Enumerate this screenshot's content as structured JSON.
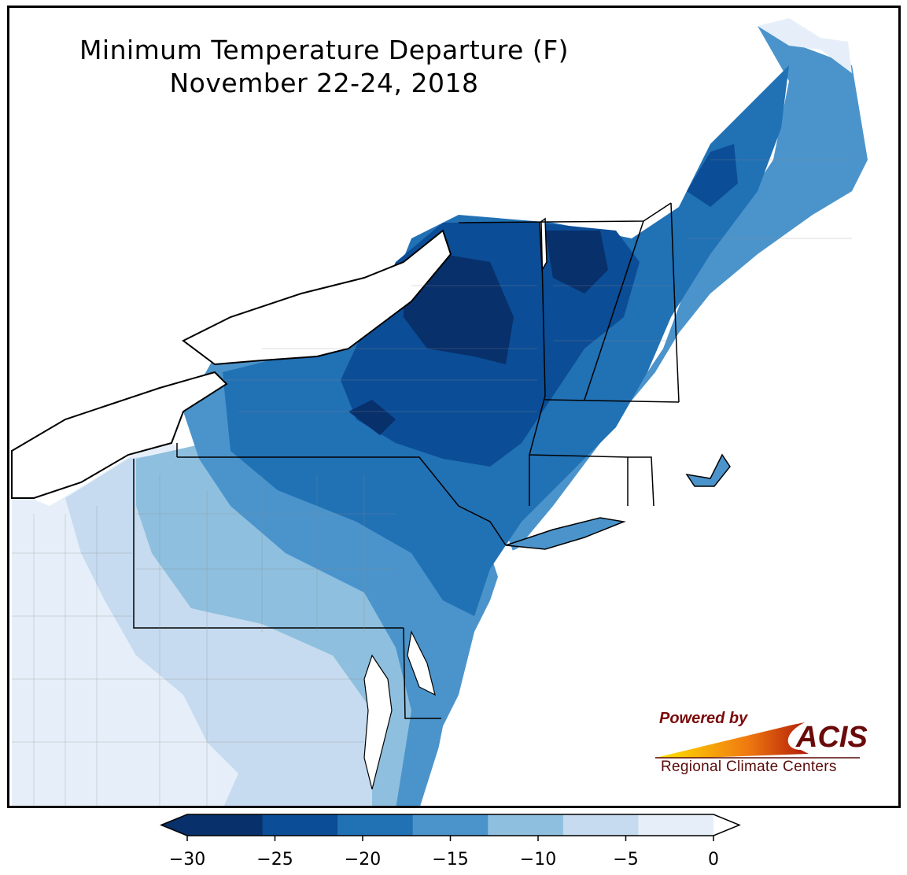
{
  "map": {
    "title_line1": "Minimum Temperature Departure (F)",
    "title_line2": "November 22-24, 2018",
    "colors": {
      "band_0": "#08306b",
      "band_1": "#0b4d96",
      "band_2": "#2171b5",
      "band_3": "#4b94cb",
      "band_4": "#8ebfde",
      "band_5": "#c6dbef",
      "band_6": "#e6eff9",
      "water": "#ffffff",
      "border": "#000000"
    }
  },
  "colorbar": {
    "ticks": [
      "−30",
      "−25",
      "−20",
      "−15",
      "−10",
      "−5",
      "0"
    ],
    "bands": [
      "#08306b",
      "#0b4d96",
      "#2171b5",
      "#4b94cb",
      "#8ebfde",
      "#c6dbef",
      "#e6eff9"
    ]
  },
  "logo": {
    "powered_by": "Powered by",
    "name": "ACIS",
    "subtitle": "Regional Climate Centers"
  }
}
